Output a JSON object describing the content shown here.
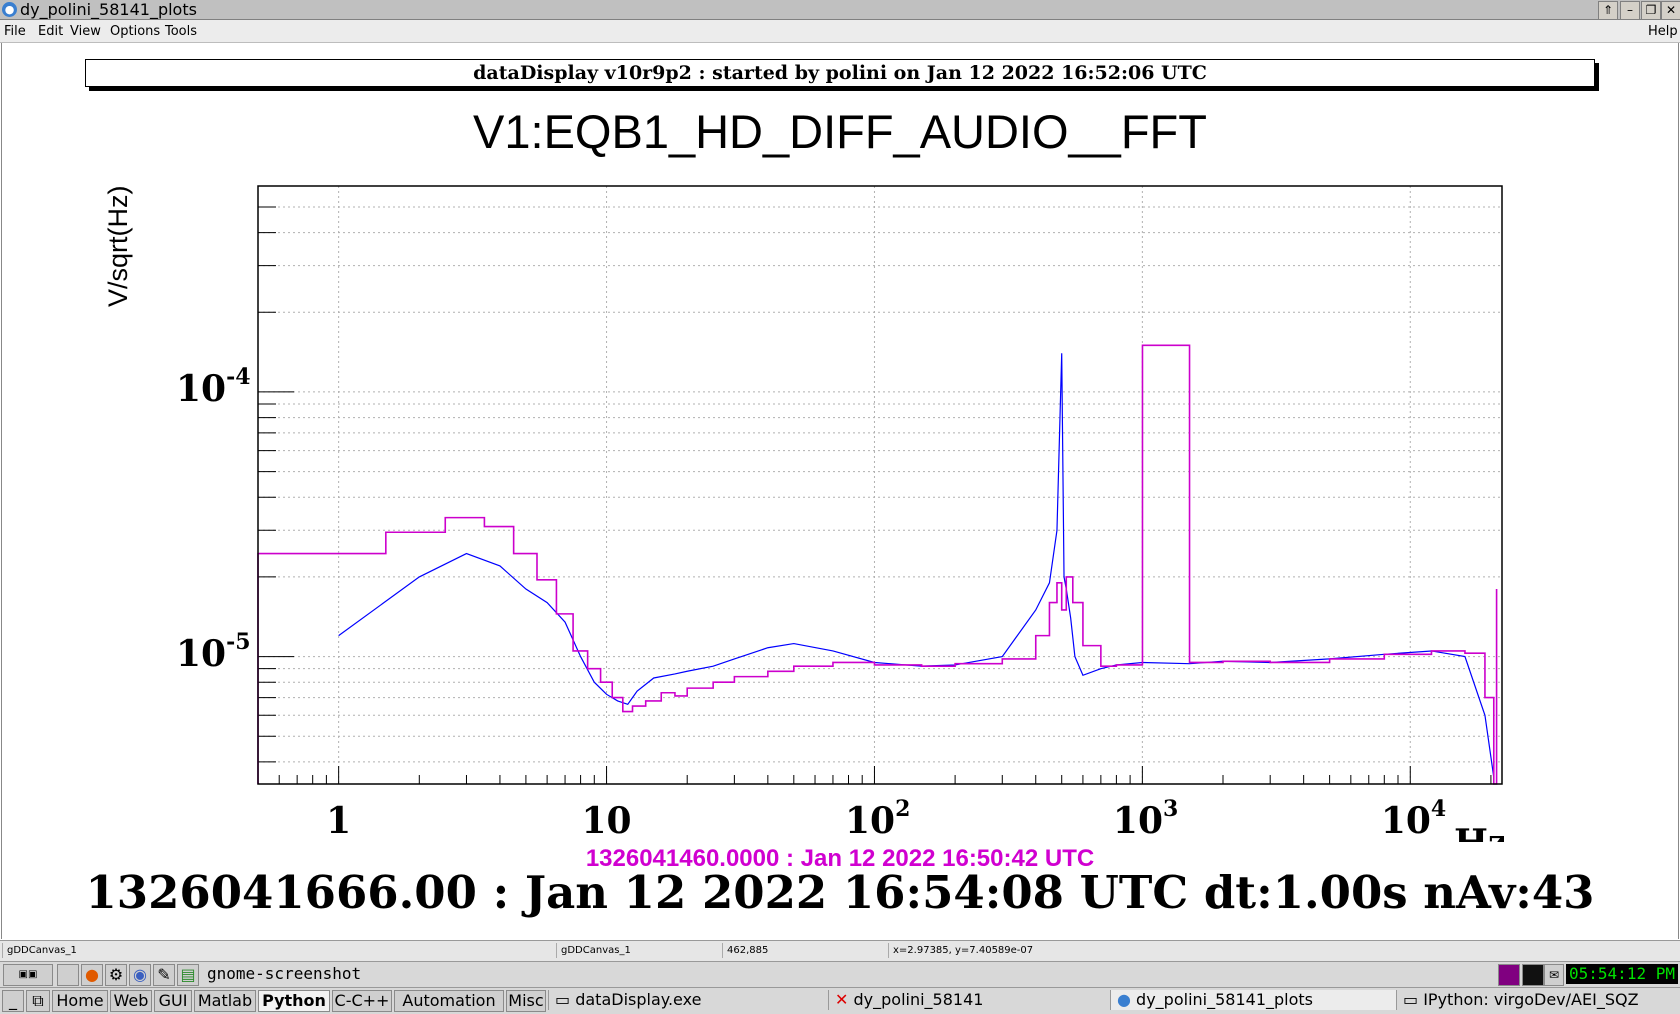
{
  "window": {
    "title": "dy_polini_58141_plots",
    "app_icon": "root-gui-icon",
    "buttons": [
      "stay-on-top-icon",
      "minimize-icon",
      "restore-icon",
      "close-icon"
    ]
  },
  "menubar": {
    "items": [
      "File",
      "Edit",
      "View",
      "Options",
      "Tools"
    ],
    "help": "Help"
  },
  "banner": "dataDisplay v10r9p2 : started by polini on Jan 12 2022 16:52:06 UTC",
  "chart_data": {
    "type": "line",
    "title": "V1:EQB1_HD_DIFF_AUDIO__FFT",
    "ylabel": "V/sqrt(Hz)",
    "xunit": "Hz",
    "xscale": "log",
    "yscale": "log",
    "xlim": [
      0.5,
      22000
    ],
    "ylim": [
      3.3e-06,
      0.0006
    ],
    "grid": true,
    "x_tick_labels": [
      {
        "base": "1",
        "exp": ""
      },
      {
        "base": "10",
        "exp": ""
      },
      {
        "base": "10",
        "exp": "2"
      },
      {
        "base": "10",
        "exp": "3"
      },
      {
        "base": "10",
        "exp": "4"
      }
    ],
    "x_tick_values": [
      1,
      10,
      100,
      1000,
      10000
    ],
    "y_tick_labels": [
      {
        "base": "10",
        "exp": "-5"
      },
      {
        "base": "10",
        "exp": "-4"
      }
    ],
    "y_tick_values": [
      1e-05,
      0.0001
    ],
    "series": [
      {
        "color": "#0000ff",
        "style": "line",
        "x": [
          1,
          2,
          3,
          4,
          5,
          6,
          7,
          8,
          9,
          10,
          11,
          12,
          13,
          15,
          18,
          20,
          25,
          30,
          40,
          50,
          70,
          100,
          150,
          200,
          300,
          400,
          450,
          480,
          500,
          510,
          520,
          540,
          560,
          600,
          700,
          800,
          1000,
          1500,
          2000,
          3000,
          5000,
          8000,
          12000,
          16000,
          19000,
          20500
        ],
        "y": [
          1.2e-05,
          2e-05,
          2.45e-05,
          2.2e-05,
          1.8e-05,
          1.6e-05,
          1.35e-05,
          1e-05,
          8e-06,
          7.2e-06,
          6.8e-06,
          6.6e-06,
          7.4e-06,
          8.3e-06,
          8.6e-06,
          8.8e-06,
          9.2e-06,
          9.8e-06,
          1.08e-05,
          1.12e-05,
          1.05e-05,
          9.5e-06,
          9.2e-06,
          9.3e-06,
          1e-05,
          1.5e-05,
          1.9e-05,
          3e-05,
          0.00014,
          2e-05,
          1.8e-05,
          1.4e-05,
          1e-05,
          8.5e-06,
          9e-06,
          9.3e-06,
          9.5e-06,
          9.4e-06,
          9.6e-06,
          9.5e-06,
          9.8e-06,
          1.02e-05,
          1.05e-05,
          1e-05,
          6e-06,
          3.5e-06
        ]
      },
      {
        "color": "#cc00cc",
        "style": "step",
        "x": [
          0.5,
          1.5,
          2.5,
          3.5,
          4.5,
          5.5,
          6.5,
          7.5,
          8.5,
          9.5,
          10.5,
          11.5,
          12.5,
          14,
          16,
          18,
          20,
          25,
          30,
          40,
          50,
          70,
          100,
          150,
          200,
          300,
          400,
          450,
          480,
          500,
          520,
          550,
          600,
          700,
          800,
          1000,
          1001,
          1500,
          2000,
          3000,
          5000,
          8000,
          12000,
          16000,
          19000,
          20500,
          21000
        ],
        "y": [
          2.45e-05,
          2.95e-05,
          3.35e-05,
          3.1e-05,
          2.45e-05,
          1.95e-05,
          1.45e-05,
          1.05e-05,
          9e-06,
          8e-06,
          7e-06,
          6.2e-06,
          6.5e-06,
          6.8e-06,
          7.3e-06,
          7.1e-06,
          7.6e-06,
          8e-06,
          8.4e-06,
          8.8e-06,
          9.2e-06,
          9.5e-06,
          9.3e-06,
          9.2e-06,
          9.4e-06,
          9.8e-06,
          1.2e-05,
          1.6e-05,
          1.9e-05,
          1.5e-05,
          2e-05,
          1.6e-05,
          1.1e-05,
          9.2e-06,
          9.3e-06,
          9.4e-06,
          0.00015,
          9.5e-06,
          9.6e-06,
          9.5e-06,
          9.8e-06,
          1.02e-05,
          1.05e-05,
          1.03e-05,
          7e-06,
          3.3e-06,
          1.8e-05
        ]
      }
    ]
  },
  "reference": "1326041460.0000 : Jan 12 2022 16:50:42 UTC",
  "info": "1326041666.00 : Jan 12 2022 16:54:08 UTC dt:1.00s nAv:43",
  "statusbar": [
    "gDDCanvas_1",
    "gDDCanvas_1",
    "462,885",
    "x=2.97385, y=7.40589e-07"
  ],
  "taskbar_top": {
    "command": "gnome-screenshot",
    "clock": "05:54:12 PM"
  },
  "taskbar_bottom": {
    "groups": [
      "Home",
      "Web",
      "GUI",
      "Matlab",
      "Python",
      "C-C++",
      "Automation",
      "Misc"
    ],
    "active_group": "Python",
    "tasks": [
      "dataDisplay.exe",
      "dy_polini_58141",
      "dy_polini_58141_plots",
      "IPython: virgoDev/AEI_SQZ"
    ]
  }
}
